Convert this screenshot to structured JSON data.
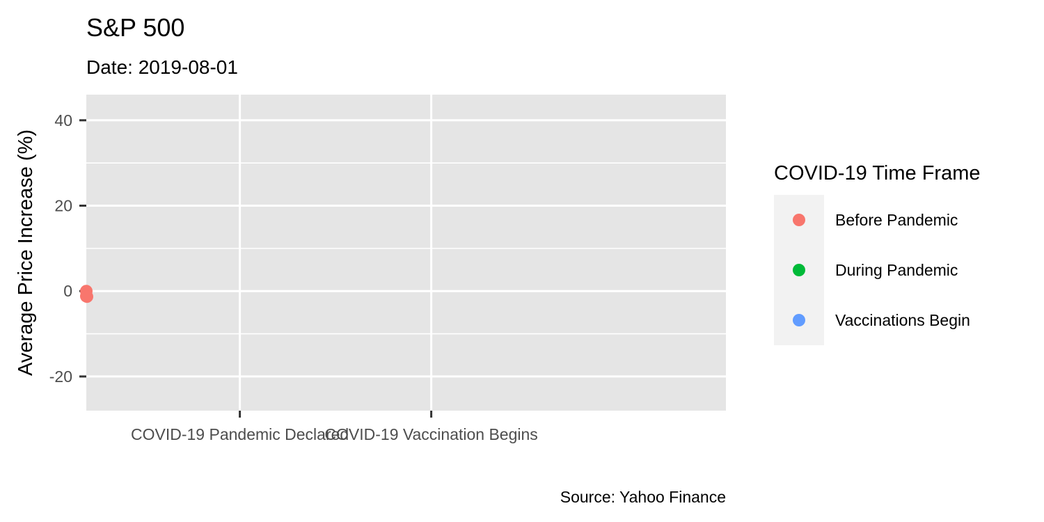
{
  "header": {
    "title": "S&P 500",
    "subtitle": "Date: 2019-08-01"
  },
  "caption": "Source: Yahoo Finance",
  "legend": {
    "title": "COVID-19 Time Frame",
    "items": [
      {
        "label": "Before Pandemic",
        "color": "#F8766D"
      },
      {
        "label": "During Pandemic",
        "color": "#00BA38"
      },
      {
        "label": "Vaccinations Begin",
        "color": "#619CFF"
      }
    ]
  },
  "chart_data": {
    "type": "scatter",
    "title": "S&P 500",
    "subtitle": "Date: 2019-08-01",
    "ylabel": "Average Price Increase (%)",
    "xlabel": "",
    "x_type": "date",
    "xlim": [
      "2019-08-01",
      "2022-02-15"
    ],
    "x_ticks": [
      {
        "date": "2020-03-11",
        "label": "COVID-19 Pandemic Declared"
      },
      {
        "date": "2020-12-14",
        "label": "COVID-19 Vaccination Begins"
      }
    ],
    "ylim": [
      -28,
      46
    ],
    "y_ticks": [
      -20,
      0,
      20,
      40
    ],
    "grid": true,
    "legend_position": "right",
    "series": [
      {
        "name": "Before Pandemic",
        "color": "#F8766D",
        "points": [
          {
            "x": "2019-08-01",
            "y": 0.0
          },
          {
            "x": "2019-08-01",
            "y": -1.2
          },
          {
            "x": "2019-08-02",
            "y": -1.3
          }
        ]
      },
      {
        "name": "During Pandemic",
        "color": "#00BA38",
        "points": []
      },
      {
        "name": "Vaccinations Begin",
        "color": "#619CFF",
        "points": []
      }
    ]
  }
}
